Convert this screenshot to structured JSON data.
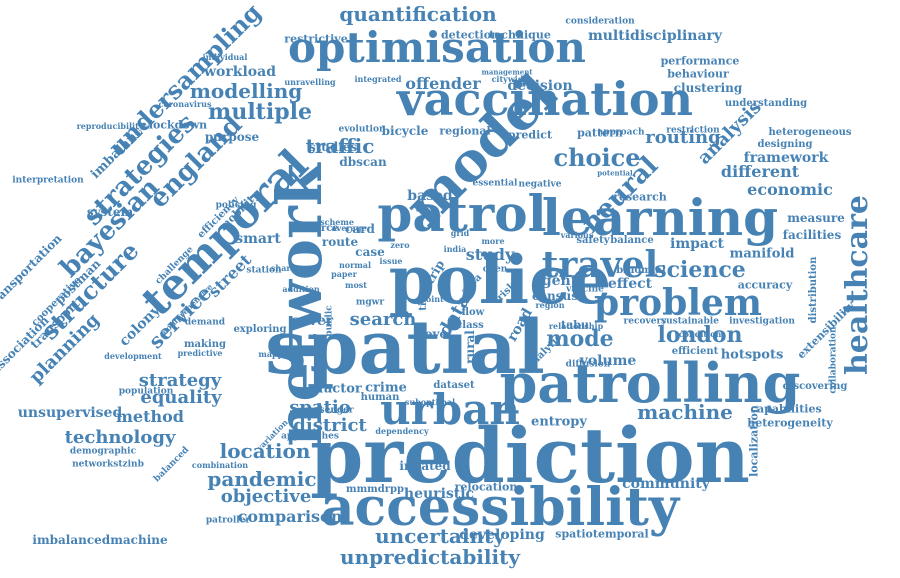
{
  "color": "#4682b4",
  "words": [
    "prediction",
    "spatial",
    "network",
    "police",
    "patrolling",
    "accessibility",
    "learning",
    "patrol",
    "vaccination",
    "optimisation",
    "model",
    "temporal",
    "urban",
    "travel",
    "problem",
    "healthcare",
    "strategies",
    "bayesian",
    "england",
    "choice",
    "neural",
    "science",
    "unpredictability",
    "uncertainty",
    "quantification",
    "undersampling",
    "multiple",
    "modelling",
    "structure",
    "service",
    "strategy",
    "planning",
    "london",
    "economic",
    "framework",
    "analysis",
    "mode",
    "routing",
    "location",
    "technology",
    "pandemic",
    "machine",
    "district",
    "search",
    "data",
    "method",
    "equality",
    "objective",
    "comparison",
    "community",
    "heuristic",
    "developing",
    "spatiotemporal",
    "imbalancedmachine",
    "unsupervised",
    "crime",
    "factor",
    "spatio",
    "volume",
    "hotspots",
    "efficient",
    "multidisciplinary",
    "performance",
    "behaviour",
    "clustering",
    "offender",
    "decision",
    "workload",
    "restrictive",
    "detection",
    "technique",
    "different",
    "impact",
    "manifold",
    "accuracy",
    "effect",
    "agent",
    "census",
    "road",
    "study",
    "based",
    "traffic",
    "studies",
    "dbscan",
    "bicycle",
    "regional",
    "predict",
    "pattern",
    "lockdown",
    "imbalance",
    "purpose",
    "smart",
    "street",
    "system",
    "colony",
    "cover",
    "card",
    "route",
    "case",
    "source",
    "measure",
    "facilities",
    "extensibility",
    "localization",
    "heterogeneity",
    "capabilities",
    "discovering",
    "collaboration",
    "distribution",
    "heterogeneous",
    "understanding",
    "designing",
    "research",
    "safety",
    "balance",
    "binomial",
    "investigation",
    "sustainable",
    "recovery",
    "entropy",
    "inflated",
    "relocation",
    "mmmdrpp",
    "dataset",
    "human",
    "class",
    "rural",
    "flow",
    "tabu",
    "vaccine",
    "diffusion",
    "analytic",
    "demand",
    "making",
    "exploring",
    "transport",
    "association",
    "cooperative",
    "postman",
    "transportation",
    "interpretation",
    "reproducibility",
    "coronavirus",
    "individual",
    "unravelling",
    "integrated",
    "citywide",
    "management",
    "consideration",
    "approach",
    "restriction",
    "evolution",
    "essential",
    "negative",
    "potential",
    "population",
    "demographic",
    "networkstzinb",
    "balanced",
    "combination",
    "patroller",
    "approaches",
    "variation",
    "passenger",
    "predictive",
    "development",
    "mobility",
    "efficiency",
    "policing",
    "challenge",
    "scheme",
    "average",
    "comprehensive",
    "station",
    "sharing",
    "addition",
    "normal",
    "paper",
    "most",
    "level",
    "open",
    "trip",
    "grid",
    "more",
    "issue",
    "zero",
    "public",
    "mgwr",
    "mapping",
    "time",
    "area",
    "risk",
    "india",
    "point",
    "region",
    "dependency",
    "suboptimal",
    "condition",
    "relationship",
    "various"
  ]
}
